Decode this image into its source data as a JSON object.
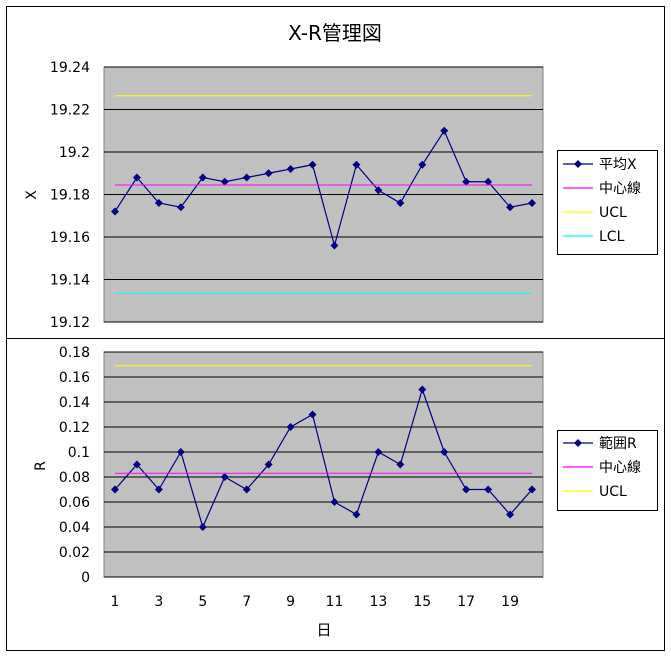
{
  "chart_data": [
    {
      "type": "line",
      "title": "X-R管理図",
      "xlabel": "",
      "ylabel": "X",
      "ylim": [
        19.12,
        19.24
      ],
      "yticks": [
        "19.24",
        "19.22",
        "19.2",
        "19.18",
        "19.16",
        "19.14",
        "19.12"
      ],
      "grid": true,
      "legend_placement": "right",
      "x": [
        1,
        2,
        3,
        4,
        5,
        6,
        7,
        8,
        9,
        10,
        11,
        12,
        13,
        14,
        15,
        16,
        17,
        18,
        19,
        20
      ],
      "series": [
        {
          "name": "平均X",
          "color": "#000080",
          "marker": "diamond",
          "values": [
            19.172,
            19.188,
            19.176,
            19.174,
            19.188,
            19.186,
            19.188,
            19.19,
            19.192,
            19.194,
            19.156,
            19.194,
            19.182,
            19.176,
            19.194,
            19.21,
            19.186,
            19.186,
            19.174,
            19.176
          ]
        },
        {
          "name": "中心線",
          "color": "#ff00ff",
          "marker": "none",
          "values": [
            19.1845,
            19.1845,
            19.1845,
            19.1845,
            19.1845,
            19.1845,
            19.1845,
            19.1845,
            19.1845,
            19.1845,
            19.1845,
            19.1845,
            19.1845,
            19.1845,
            19.1845,
            19.1845,
            19.1845,
            19.1845,
            19.1845,
            19.1845
          ]
        },
        {
          "name": "UCL",
          "color": "#ffff00",
          "marker": "none",
          "values": [
            19.2265,
            19.2265,
            19.2265,
            19.2265,
            19.2265,
            19.2265,
            19.2265,
            19.2265,
            19.2265,
            19.2265,
            19.2265,
            19.2265,
            19.2265,
            19.2265,
            19.2265,
            19.2265,
            19.2265,
            19.2265,
            19.2265,
            19.2265
          ]
        },
        {
          "name": "LCL",
          "color": "#00ffff",
          "marker": "none",
          "values": [
            19.1335,
            19.1335,
            19.1335,
            19.1335,
            19.1335,
            19.1335,
            19.1335,
            19.1335,
            19.1335,
            19.1335,
            19.1335,
            19.1335,
            19.1335,
            19.1335,
            19.1335,
            19.1335,
            19.1335,
            19.1335,
            19.1335,
            19.1335
          ]
        }
      ]
    },
    {
      "type": "line",
      "title": "",
      "xlabel": "日",
      "ylabel": "R",
      "ylim": [
        0,
        0.18
      ],
      "yticks": [
        "0.18",
        "0.16",
        "0.14",
        "0.12",
        "0.1",
        "0.08",
        "0.06",
        "0.04",
        "0.02",
        "0"
      ],
      "xticks": [
        "1",
        "3",
        "5",
        "7",
        "9",
        "11",
        "13",
        "15",
        "17",
        "19"
      ],
      "grid": true,
      "legend_placement": "right",
      "x": [
        1,
        2,
        3,
        4,
        5,
        6,
        7,
        8,
        9,
        10,
        11,
        12,
        13,
        14,
        15,
        16,
        17,
        18,
        19,
        20
      ],
      "series": [
        {
          "name": "範囲R",
          "color": "#000080",
          "marker": "diamond",
          "values": [
            0.07,
            0.09,
            0.07,
            0.1,
            0.04,
            0.08,
            0.07,
            0.09,
            0.12,
            0.13,
            0.06,
            0.05,
            0.1,
            0.09,
            0.15,
            0.1,
            0.07,
            0.07,
            0.05,
            0.07
          ]
        },
        {
          "name": "中心線",
          "color": "#ff00ff",
          "marker": "none",
          "values": [
            0.083,
            0.083,
            0.083,
            0.083,
            0.083,
            0.083,
            0.083,
            0.083,
            0.083,
            0.083,
            0.083,
            0.083,
            0.083,
            0.083,
            0.083,
            0.083,
            0.083,
            0.083,
            0.083,
            0.083
          ]
        },
        {
          "name": "UCL",
          "color": "#ffff00",
          "marker": "none",
          "values": [
            0.169,
            0.169,
            0.169,
            0.169,
            0.169,
            0.169,
            0.169,
            0.169,
            0.169,
            0.169,
            0.169,
            0.169,
            0.169,
            0.169,
            0.169,
            0.169,
            0.169,
            0.169,
            0.169,
            0.169
          ]
        }
      ]
    }
  ],
  "colors": {
    "plot_background": "#c0c0c0",
    "gridline": "#000000",
    "chart_background": "#ffffff"
  }
}
